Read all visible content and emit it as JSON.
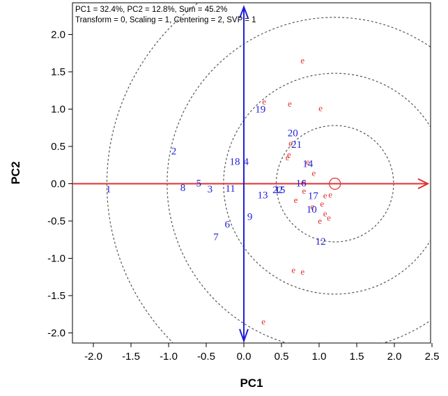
{
  "chart_data": {
    "type": "scatter",
    "subtitle_lines": [
      "PC1 = 32.4%, PC2 = 12.8%, Sum = 45.2%",
      "Transform = 0, Scaling = 1, Centering = 2, SVP = 1"
    ],
    "xlabel": "PC1",
    "ylabel": "PC2",
    "xlim": [
      -2.3,
      2.5
    ],
    "ylim": [
      -2.1,
      2.4
    ],
    "xticks": [
      "-2.0",
      "-1.5",
      "-1.0",
      "-0.5",
      "0.0",
      "0.5",
      "1.0",
      "1.5",
      "2.0",
      "2.5"
    ],
    "yticks": [
      "-2.0",
      "-1.5",
      "-1.0",
      "-0.5",
      "0.0",
      "0.5",
      "1.0",
      "1.5",
      "2.0"
    ],
    "colors": {
      "genotype": "#1f1fd6",
      "environment": "#e03030",
      "pc1_arrow": "#e03030",
      "pc2_arrow": "#1f1fd6",
      "circles": "#555555"
    },
    "center_marker": [
      1.21,
      0.0
    ],
    "circle_radii": [
      0.78,
      1.48,
      2.23,
      3.03
    ],
    "genotypes": [
      {
        "label": "1",
        "x": -1.8,
        "y": -0.07
      },
      {
        "label": "2",
        "x": -0.93,
        "y": 0.44
      },
      {
        "label": "3",
        "x": -0.45,
        "y": -0.07
      },
      {
        "label": "4",
        "x": 0.03,
        "y": 0.3
      },
      {
        "label": "5",
        "x": -0.6,
        "y": 0.01
      },
      {
        "label": "6",
        "x": -0.22,
        "y": -0.54
      },
      {
        "label": "7",
        "x": -0.37,
        "y": -0.71
      },
      {
        "label": "8",
        "x": -0.81,
        "y": -0.05
      },
      {
        "label": "9",
        "x": 0.08,
        "y": -0.44
      },
      {
        "label": "10",
        "x": 0.9,
        "y": -0.34
      },
      {
        "label": "11",
        "x": -0.18,
        "y": -0.06
      },
      {
        "label": "12",
        "x": 1.02,
        "y": -0.77
      },
      {
        "label": "13",
        "x": 0.25,
        "y": -0.15
      },
      {
        "label": "14",
        "x": 0.85,
        "y": 0.27
      },
      {
        "label": "15",
        "x": 0.48,
        "y": -0.08
      },
      {
        "label": "16",
        "x": 0.76,
        "y": 0.01
      },
      {
        "label": "17",
        "x": 0.92,
        "y": -0.16
      },
      {
        "label": "18",
        "x": -0.12,
        "y": 0.3
      },
      {
        "label": "19",
        "x": 0.22,
        "y": 1.0
      },
      {
        "label": "20",
        "x": 0.65,
        "y": 0.68
      },
      {
        "label": "21",
        "x": 0.7,
        "y": 0.53
      },
      {
        "label": "22",
        "x": 0.45,
        "y": -0.08
      }
    ],
    "environments": [
      {
        "label": "e",
        "x": 0.78,
        "y": 1.65
      },
      {
        "label": "e",
        "x": 0.27,
        "y": 1.1
      },
      {
        "label": "e",
        "x": 0.61,
        "y": 1.07
      },
      {
        "label": "e",
        "x": 1.02,
        "y": 1.01
      },
      {
        "label": "e",
        "x": 0.62,
        "y": 0.54
      },
      {
        "label": "e",
        "x": 0.6,
        "y": 0.39
      },
      {
        "label": "e",
        "x": 0.58,
        "y": 0.35
      },
      {
        "label": "e",
        "x": 0.85,
        "y": 0.29
      },
      {
        "label": "e",
        "x": 0.93,
        "y": 0.14
      },
      {
        "label": "e",
        "x": 0.8,
        "y": 0.03
      },
      {
        "label": "e",
        "x": 0.8,
        "y": -0.1
      },
      {
        "label": "e",
        "x": 1.08,
        "y": -0.16
      },
      {
        "label": "e",
        "x": 1.15,
        "y": -0.15
      },
      {
        "label": "e",
        "x": 0.69,
        "y": -0.22
      },
      {
        "label": "e",
        "x": 0.91,
        "y": -0.31
      },
      {
        "label": "e",
        "x": 1.04,
        "y": -0.27
      },
      {
        "label": "e",
        "x": 1.08,
        "y": -0.4
      },
      {
        "label": "e",
        "x": 1.13,
        "y": -0.46
      },
      {
        "label": "e",
        "x": 1.01,
        "y": -0.5
      },
      {
        "label": "e",
        "x": 0.66,
        "y": -1.16
      },
      {
        "label": "e",
        "x": 0.78,
        "y": -1.18
      },
      {
        "label": "e",
        "x": 0.26,
        "y": -1.85
      }
    ]
  }
}
